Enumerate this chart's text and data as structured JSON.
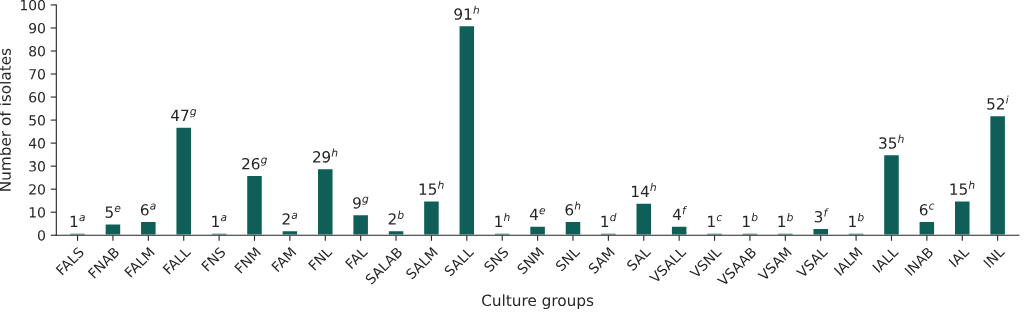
{
  "chart_data": {
    "type": "bar",
    "xlabel": "Culture groups",
    "ylabel": "Number of isolates",
    "categories": [
      "FALS",
      "FNAB",
      "FALM",
      "FALL",
      "FNS",
      "FNM",
      "FAM",
      "FNL",
      "FAL",
      "SALAB",
      "SALM",
      "SALL",
      "SNS",
      "SNM",
      "SNL",
      "SAM",
      "SAL",
      "VSALL",
      "VSNL",
      "VSAAB",
      "VSAM",
      "VSAL",
      "IALM",
      "IALL",
      "INAB",
      "IAL",
      "INL"
    ],
    "values": [
      1,
      5,
      6,
      47,
      1,
      26,
      2,
      29,
      9,
      2,
      15,
      91,
      1,
      4,
      6,
      1,
      14,
      4,
      1,
      1,
      1,
      3,
      1,
      35,
      6,
      15,
      52
    ],
    "value_labels": [
      "1$^{a}$",
      "5$^{e}$",
      "6$^{a}$",
      "47$^{g}$",
      "1$^{a}$",
      "26$^{g}$",
      "2$^{a}$",
      "29$^{h}$",
      "9$^{g}$",
      "2$^{b}$",
      "15$^{h}$",
      "91$^{h}$",
      "1$^{h}$",
      "4$^{e}$",
      "6$^{h}$",
      "1$^{d}$",
      "14$^{h}$",
      "4$^{f}$",
      "1$^{c}$",
      "1$^{b}$",
      "1$^{b}$",
      "3$^{f}$",
      "1$^{b}$",
      "35$^{h}$",
      "6$^{c}$",
      "15$^{h}$",
      "52$^{i}$"
    ],
    "color": "#0f5f58",
    "ylim": [
      0,
      100
    ],
    "yticks": [
      0,
      10,
      20,
      30,
      40,
      50,
      60,
      70,
      80,
      90,
      100
    ],
    "grid": false,
    "legend": false
  }
}
